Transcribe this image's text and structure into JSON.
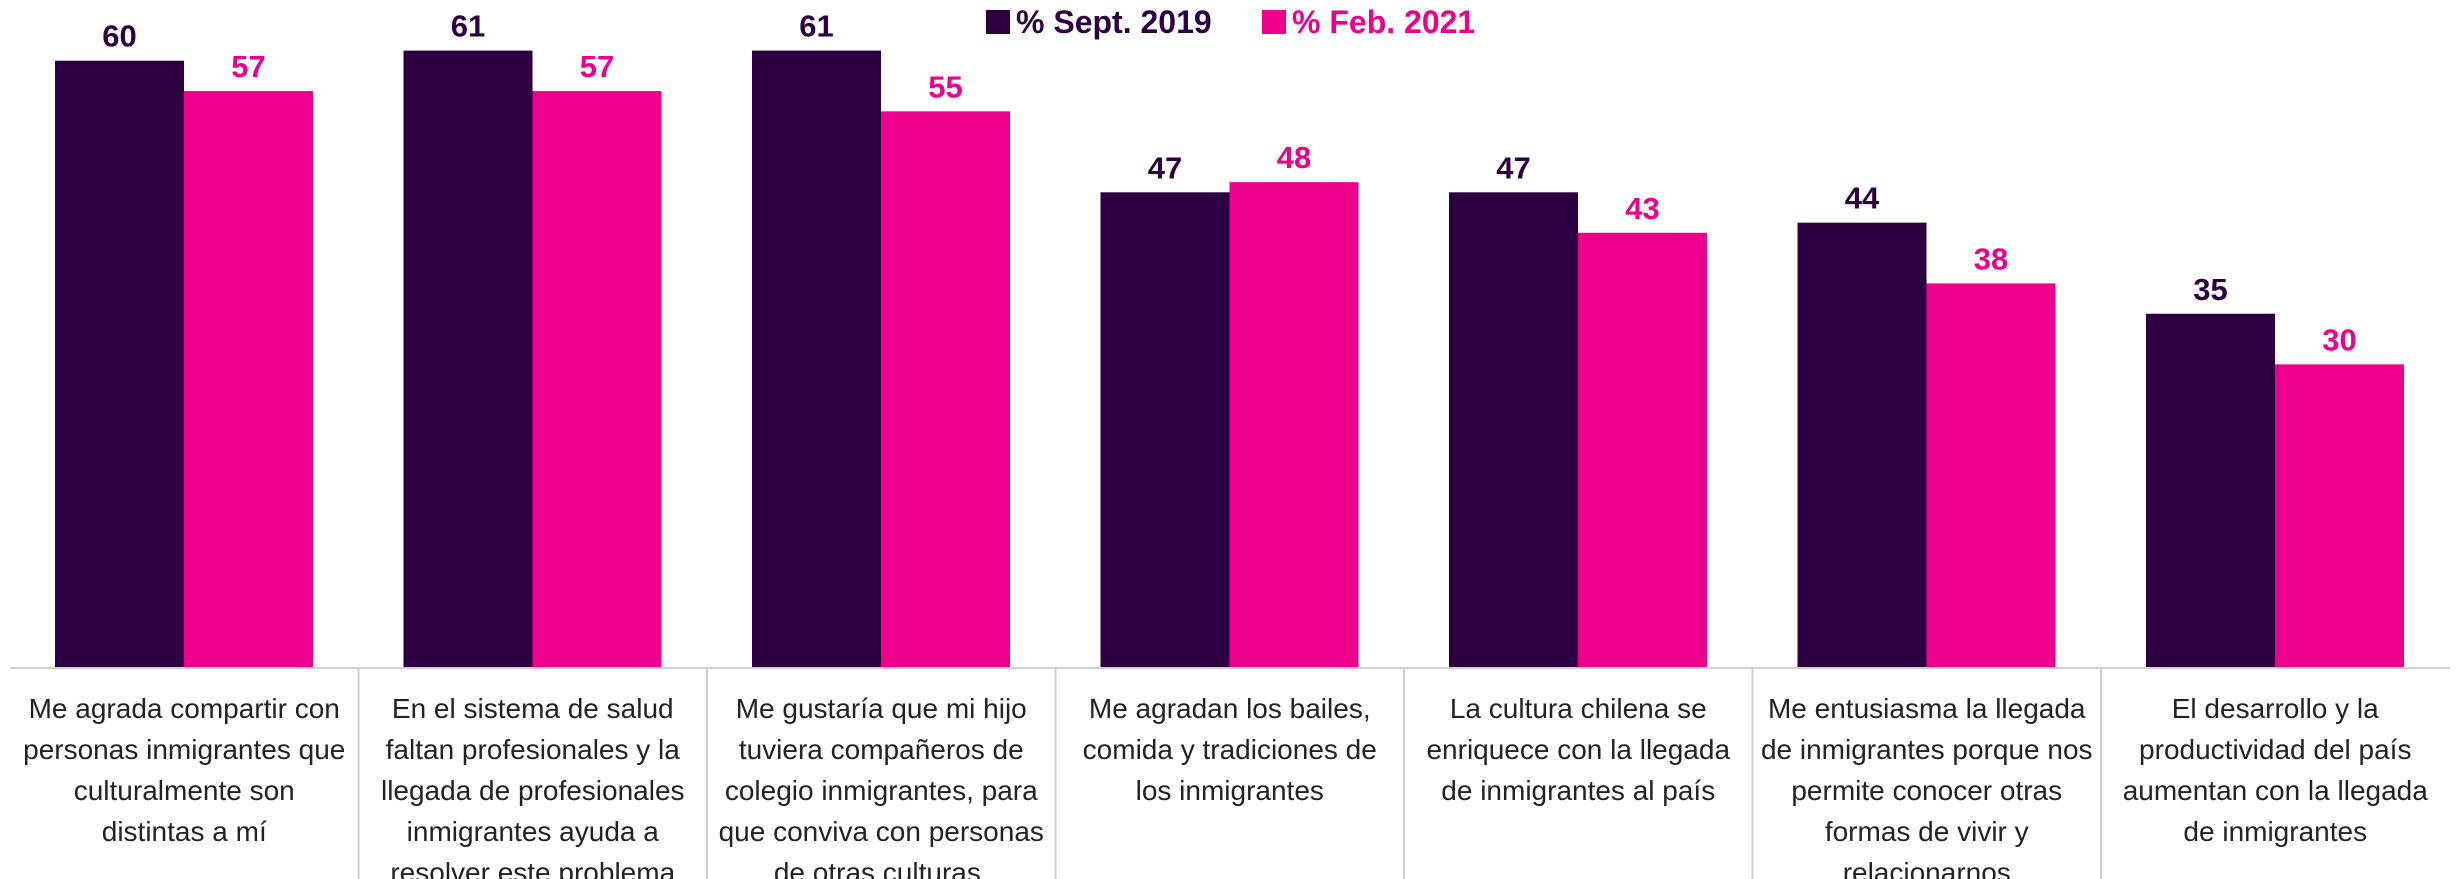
{
  "chart_data": {
    "type": "bar",
    "title": "",
    "xlabel": "",
    "ylabel": "",
    "ylim": [
      0,
      66
    ],
    "grid": false,
    "legend_position": "top-center",
    "categories": [
      [
        "Me agrada compartir con",
        "personas inmigrantes que",
        "culturalmente son",
        "distintas a mí"
      ],
      [
        "En el sistema de salud",
        "faltan profesionales y la",
        "llegada de profesionales",
        "inmigrantes ayuda a",
        "resolver este problema"
      ],
      [
        "Me gustaría que mi hijo",
        "tuviera compañeros de",
        "colegio inmigrantes, para",
        "que conviva con personas",
        "de otras culturas."
      ],
      [
        "Me agradan los bailes,",
        "comida y tradiciones de",
        "los inmigrantes"
      ],
      [
        "La cultura chilena se",
        "enriquece con la llegada",
        "de inmigrantes al país"
      ],
      [
        "Me entusiasma la llegada",
        "de inmigrantes porque nos",
        "permite conocer otras",
        "formas de vivir y",
        "relacionarnos"
      ],
      [
        "El desarrollo y la",
        "productividad del país",
        "aumentan con la llegada",
        "de inmigrantes"
      ]
    ],
    "series": [
      {
        "name": "% Sept. 2019",
        "color": "#2d0042",
        "label_color": "#2d0042",
        "values": [
          60,
          61,
          61,
          47,
          47,
          44,
          35
        ]
      },
      {
        "name": "% Feb. 2021",
        "color": "#ec008c",
        "label_color": "#ec008c",
        "values": [
          57,
          57,
          55,
          48,
          43,
          38,
          30
        ]
      }
    ]
  }
}
